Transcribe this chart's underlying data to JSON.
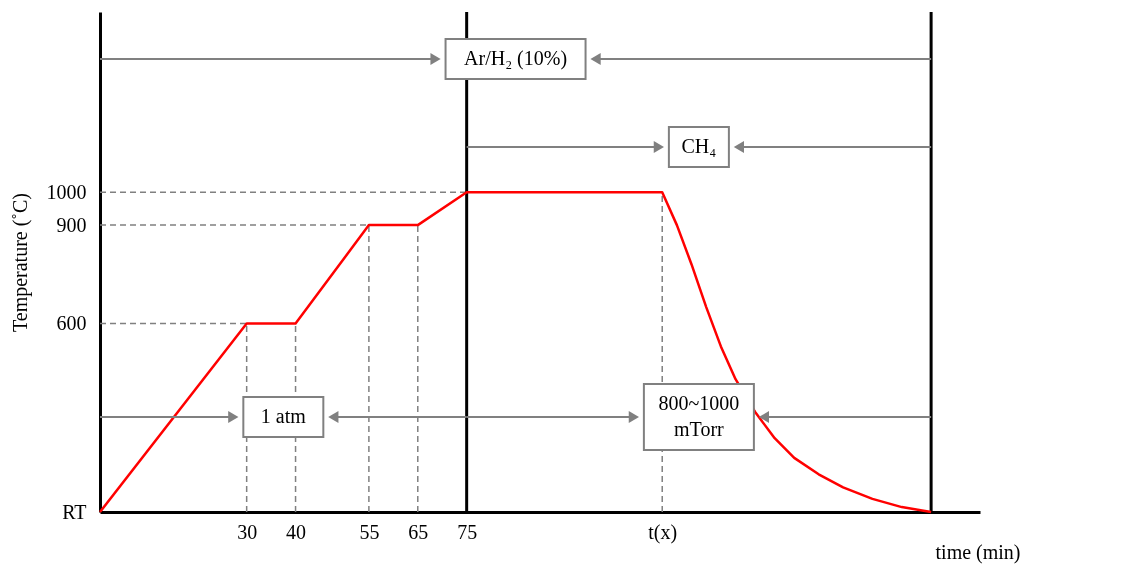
{
  "chart_data": {
    "type": "line",
    "xlabel": "time (min)",
    "ylabel": "Temperature (˚C)",
    "xlim": [
      0,
      180
    ],
    "ylim": [
      25,
      1550
    ],
    "xticks": [
      30,
      40,
      55,
      65,
      75,
      {
        "value": 115,
        "label": "t(x)"
      }
    ],
    "yticks": [
      {
        "value": 25,
        "label": "RT"
      },
      600,
      900,
      1000
    ],
    "series": [
      {
        "color": "#ff0000",
        "x": [
          0,
          30,
          40,
          55,
          65,
          75,
          115,
          118,
          121,
          124,
          127,
          130,
          134,
          138,
          142,
          147,
          152,
          158,
          164,
          170
        ],
        "values": [
          25,
          600,
          600,
          900,
          900,
          1000,
          1000,
          900,
          780,
          650,
          530,
          430,
          330,
          250,
          190,
          140,
          100,
          65,
          40,
          25
        ]
      }
    ],
    "ref_lines": [
      {
        "axis": "y",
        "value": 600,
        "color": "#808080",
        "line_style": "dashed"
      },
      {
        "axis": "y",
        "value": 900,
        "color": "#808080",
        "line_style": "dashed"
      },
      {
        "axis": "y",
        "value": 1000,
        "color": "#808080",
        "line_style": "dashed"
      },
      {
        "axis": "x",
        "value": 30,
        "color": "#808080",
        "line_style": "dashed"
      },
      {
        "axis": "x",
        "value": 40,
        "color": "#808080",
        "line_style": "dashed"
      },
      {
        "axis": "x",
        "value": 55,
        "color": "#808080",
        "line_style": "dashed"
      },
      {
        "axis": "x",
        "value": 65,
        "color": "#808080",
        "line_style": "dashed"
      },
      {
        "axis": "x",
        "value": 115,
        "color": "#808080",
        "line_style": "dashed"
      },
      {
        "axis": "x",
        "value": 75,
        "color": "#000000",
        "line_style": "solid"
      },
      {
        "axis": "x",
        "value": 170,
        "color": "#000000",
        "line_style": "solid"
      }
    ],
    "annotations": [
      "Ar/H₂ (10%)",
      "CH₄",
      "1 atm",
      "800~1000 mTorr"
    ],
    "grid": false,
    "marker": "none",
    "line_style": "solid"
  }
}
